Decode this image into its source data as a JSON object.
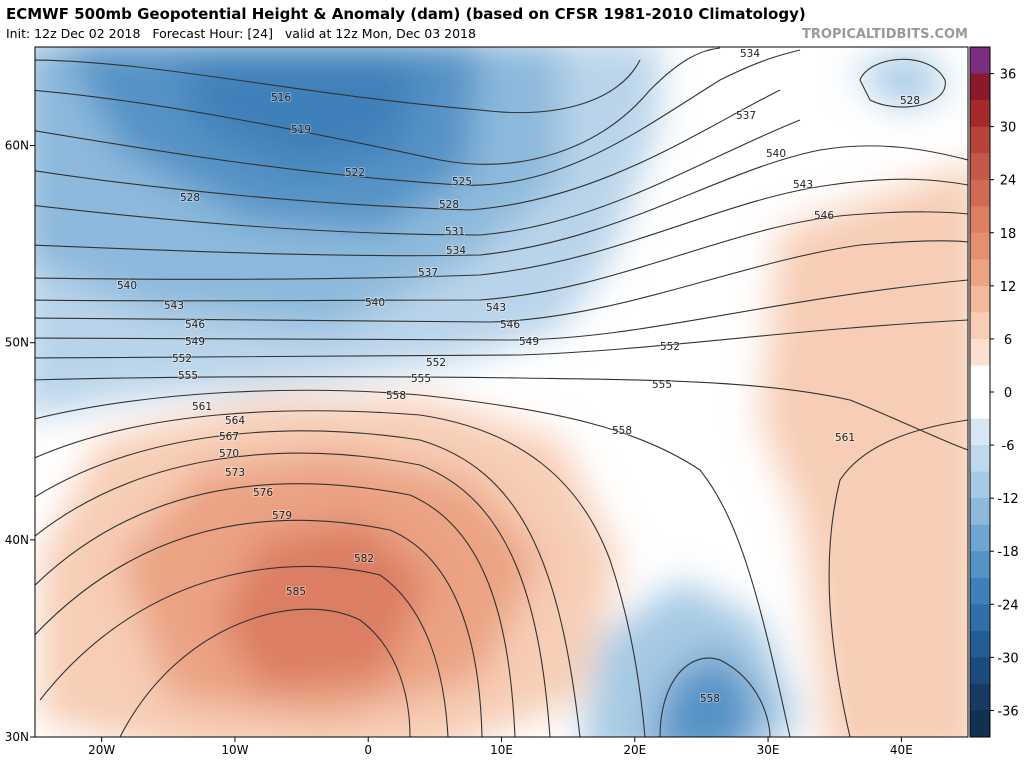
{
  "header": {
    "title": "ECMWF 500mb Geopotential Height & Anomaly (dam) (based on CFSR 1981-2010 Climatology)",
    "subtitle": "Init: 12z Dec 02 2018   Forecast Hour: [24]   valid at 12z Mon, Dec 03 2018",
    "source": "TROPICALTIDBITS.COM"
  },
  "map": {
    "lon_lim": [
      -25,
      45
    ],
    "lat_lim": [
      30,
      65
    ],
    "lon_ticks": [
      {
        "value": -20,
        "label": "20W"
      },
      {
        "value": -10,
        "label": "10W"
      },
      0,
      {
        "value": 10,
        "label": "10E"
      },
      {
        "value": 20,
        "label": "20E"
      },
      {
        "value": 30,
        "label": "30E"
      },
      {
        "value": 40,
        "label": "40E"
      }
    ],
    "lat_ticks": [
      {
        "value": 30,
        "label": "30N"
      },
      {
        "value": 40,
        "label": "40N"
      },
      {
        "value": 50,
        "label": "50N"
      },
      {
        "value": 60,
        "label": "60N"
      }
    ],
    "contour_labels": [
      "516",
      "519",
      "522",
      "525",
      "528",
      "528",
      "531",
      "534",
      "537",
      "540",
      "540",
      "543",
      "543",
      "546",
      "546",
      "549",
      "549",
      "552",
      "552",
      "552",
      "555",
      "555",
      "555",
      "558",
      "558",
      "561",
      "561",
      "564",
      "567",
      "570",
      "573",
      "576",
      "579",
      "582",
      "585",
      "558",
      "534",
      "537",
      "540",
      "543",
      "546",
      "528"
    ]
  },
  "colorbar": {
    "lim": [
      -39,
      39
    ],
    "ticks": [
      36,
      30,
      24,
      18,
      12,
      6,
      0,
      -6,
      -12,
      -18,
      -24,
      -30,
      -36
    ],
    "colors": [
      "#7b2d80",
      "#8a1a2a",
      "#a52a2a",
      "#b8433a",
      "#c4584a",
      "#d06a55",
      "#dc7e64",
      "#e49070",
      "#eba383",
      "#f2b99c",
      "#f7cdb5",
      "#fbe0d0",
      "#ffffff",
      "#ffffff",
      "#d8e7f3",
      "#c0d8ec",
      "#a6c9e4",
      "#8cb9dc",
      "#6ea5d1",
      "#5593c6",
      "#3f80ba",
      "#2f6ea9",
      "#245c94",
      "#1c4a7c",
      "#173b63",
      "#12304f"
    ]
  }
}
